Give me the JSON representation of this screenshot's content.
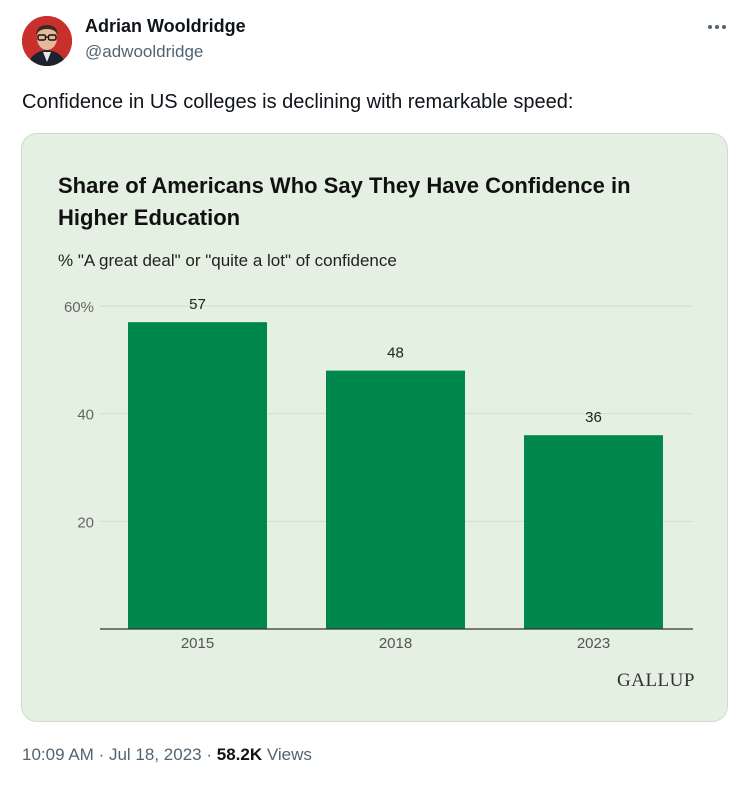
{
  "author": {
    "name": "Adrian Wooldridge",
    "handle": "@adwooldridge"
  },
  "tweet": {
    "text": "Confidence in US colleges is declining with remarkable speed:"
  },
  "icons": {
    "more": "more-horizontal-icon"
  },
  "colors": {
    "bar": "#00884c",
    "card_background": "#e4f0e1",
    "gridline": "#d3ddd0"
  },
  "chart_data": {
    "type": "bar",
    "title": "Share of Americans Who Say They Have Confidence in Higher Education",
    "subtitle": "% \"A great deal\" or \"quite a lot\" of confidence",
    "categories": [
      "2015",
      "2018",
      "2023"
    ],
    "values": [
      57,
      48,
      36
    ],
    "data_labels": [
      "57",
      "48",
      "36"
    ],
    "ylim": [
      0,
      60
    ],
    "yticks": [
      {
        "value": 20,
        "label": "20"
      },
      {
        "value": 40,
        "label": "40"
      },
      {
        "value": 60,
        "label": "60%"
      }
    ],
    "grid": true,
    "source": "GALLUP"
  },
  "meta": {
    "time": "10:09 AM",
    "separator": "·",
    "date": "Jul 18, 2023",
    "views_count": "58.2K",
    "views_label": "Views"
  }
}
